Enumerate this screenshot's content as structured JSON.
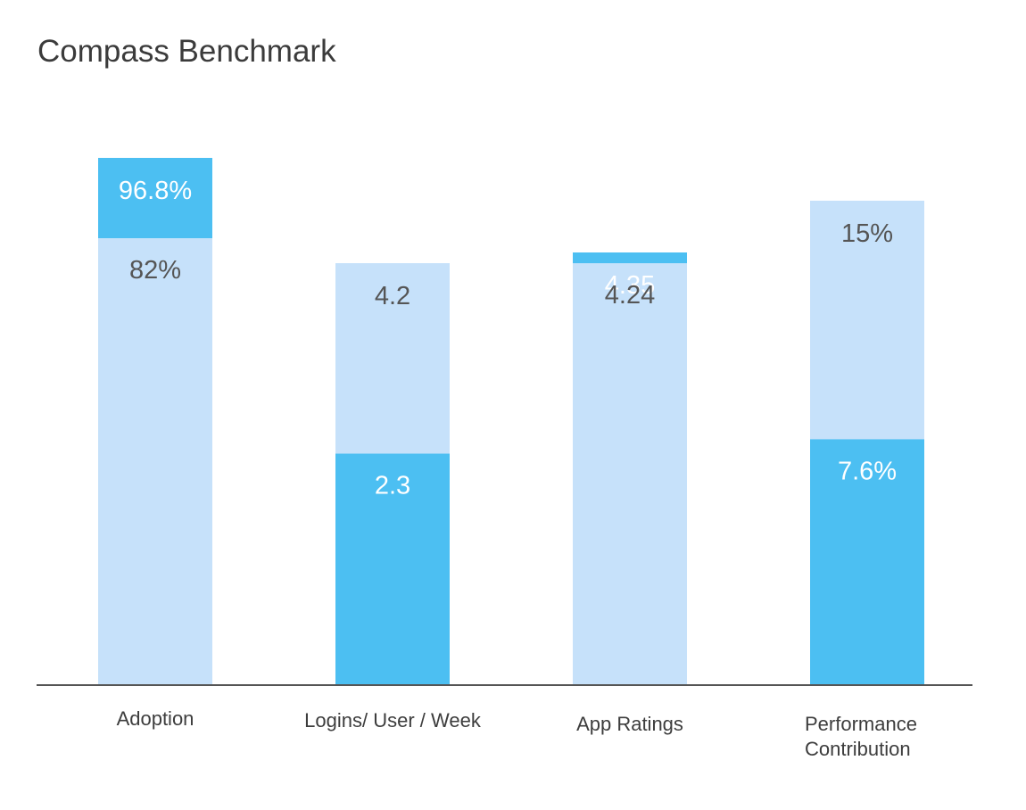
{
  "title": "Compass Benchmark",
  "colors": {
    "light": "#c6e1fa",
    "dark": "#4cbff2",
    "axis": "#555555",
    "text_on_light": "#555555",
    "text_on_dark": "#ffffff"
  },
  "chart_data": {
    "type": "bar",
    "title": "Compass Benchmark",
    "xlabel": "",
    "ylabel": "",
    "grid": false,
    "categories": [
      {
        "label_lines": [
          "Adoption"
        ]
      },
      {
        "label_lines": [
          "Logins/ User / Week"
        ]
      },
      {
        "label_lines": [
          "App Ratings"
        ]
      },
      {
        "label_lines": [
          "Performance",
          "Contribution"
        ]
      }
    ],
    "bars": [
      {
        "category": "Adoption",
        "lower": {
          "value": 82,
          "label": "82%",
          "color": "light"
        },
        "upper": {
          "value": 96.8,
          "label": "96.8%",
          "color": "dark"
        }
      },
      {
        "category": "Logins/ User / Week",
        "lower": {
          "value": 2.3,
          "label": "2.3",
          "color": "dark"
        },
        "upper": {
          "value": 4.2,
          "label": "4.2",
          "color": "light"
        }
      },
      {
        "category": "App Ratings",
        "lower": {
          "value": 4.24,
          "label": "4.24",
          "color": "light"
        },
        "upper": {
          "value": 4.35,
          "label": "4.35",
          "color": "dark"
        }
      },
      {
        "category": "Performance Contribution",
        "lower": {
          "value": 7.6,
          "label": "7.6%",
          "color": "dark"
        },
        "upper": {
          "value": 15,
          "label": "15%",
          "color": "light"
        }
      }
    ]
  }
}
